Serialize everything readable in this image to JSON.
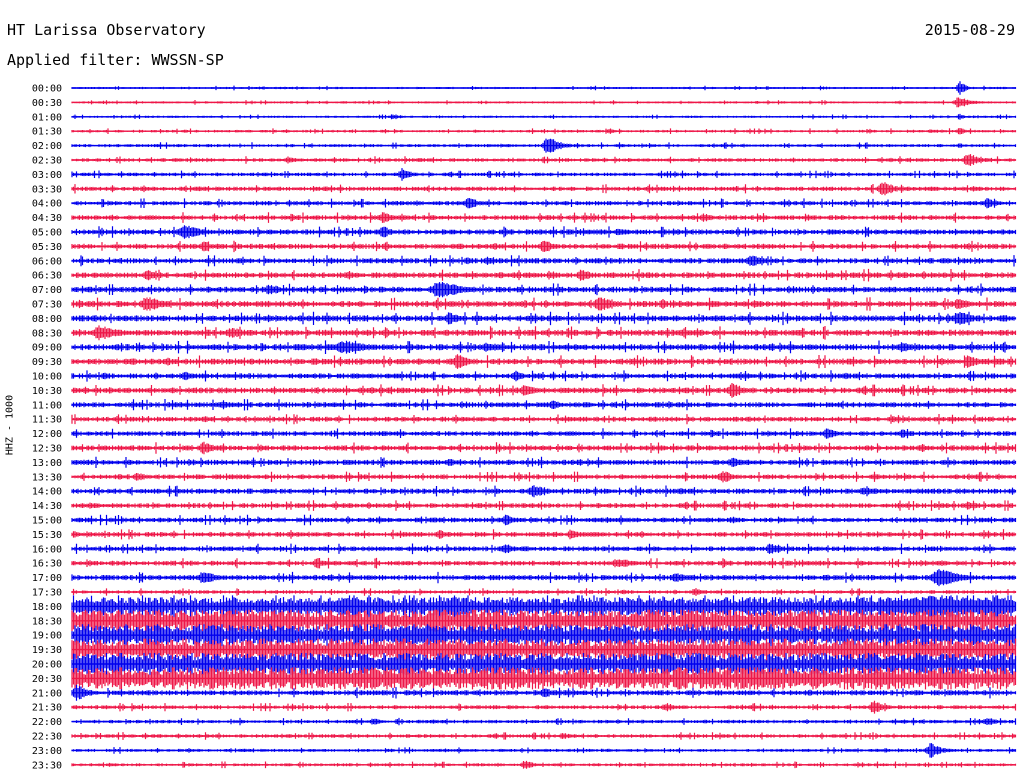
{
  "header": {
    "title": "HT Larissa Observatory",
    "date": "2015-08-29",
    "filter_label": "Applied filter: WWSSN-SP"
  },
  "chart_data": {
    "type": "line",
    "title": "HT Larissa Observatory",
    "subtitle": "Applied filter: WWSSN-SP",
    "date": "2015-08-29",
    "ylabel": "HHZ - 1000",
    "xlabel": "",
    "row_interval_minutes": 30,
    "grid": false,
    "colors": {
      "even_row": "#0000ee",
      "odd_row": "#ee1748",
      "background": "#ffffff",
      "text": "#000000"
    },
    "rows": [
      {
        "label": "00:00",
        "noise": 0.1,
        "events": [
          {
            "t": 0.94,
            "amp": 0.75,
            "dur": 0.004
          },
          {
            "t": 0.2,
            "amp": 0.15,
            "dur": 0.01
          }
        ]
      },
      {
        "label": "00:30",
        "noise": 0.1,
        "events": [
          {
            "t": 0.94,
            "amp": 0.55,
            "dur": 0.008
          }
        ]
      },
      {
        "label": "01:00",
        "noise": 0.1,
        "events": [
          {
            "t": 0.34,
            "amp": 0.25,
            "dur": 0.008
          },
          {
            "t": 0.94,
            "amp": 0.3,
            "dur": 0.004
          }
        ]
      },
      {
        "label": "01:30",
        "noise": 0.12,
        "events": [
          {
            "t": 0.57,
            "amp": 0.2,
            "dur": 0.008
          },
          {
            "t": 0.94,
            "amp": 0.4,
            "dur": 0.004
          }
        ]
      },
      {
        "label": "02:00",
        "noise": 0.14,
        "events": [
          {
            "t": 0.505,
            "amp": 0.9,
            "dur": 0.008
          },
          {
            "t": 0.94,
            "amp": 0.3,
            "dur": 0.004
          }
        ]
      },
      {
        "label": "02:30",
        "noise": 0.16,
        "events": [
          {
            "t": 0.23,
            "amp": 0.35,
            "dur": 0.008
          },
          {
            "t": 0.95,
            "amp": 0.6,
            "dur": 0.01
          }
        ]
      },
      {
        "label": "03:00",
        "noise": 0.16,
        "events": [
          {
            "t": 0.35,
            "amp": 0.6,
            "dur": 0.006
          },
          {
            "t": 0.63,
            "amp": 0.2,
            "dur": 0.008
          }
        ]
      },
      {
        "label": "03:30",
        "noise": 0.2,
        "events": [
          {
            "t": 0.86,
            "amp": 0.7,
            "dur": 0.008
          },
          {
            "t": 0.27,
            "amp": 0.25,
            "dur": 0.01
          }
        ]
      },
      {
        "label": "04:00",
        "noise": 0.2,
        "events": [
          {
            "t": 0.42,
            "amp": 0.7,
            "dur": 0.006
          },
          {
            "t": 0.97,
            "amp": 0.5,
            "dur": 0.008
          }
        ]
      },
      {
        "label": "04:30",
        "noise": 0.22,
        "events": [
          {
            "t": 0.33,
            "amp": 0.5,
            "dur": 0.01
          },
          {
            "t": 0.67,
            "amp": 0.4,
            "dur": 0.008
          }
        ]
      },
      {
        "label": "05:00",
        "noise": 0.24,
        "events": [
          {
            "t": 0.12,
            "amp": 0.7,
            "dur": 0.012
          },
          {
            "t": 0.33,
            "amp": 0.6,
            "dur": 0.006
          },
          {
            "t": 0.58,
            "amp": 0.4,
            "dur": 0.008
          }
        ]
      },
      {
        "label": "05:30",
        "noise": 0.24,
        "events": [
          {
            "t": 0.14,
            "amp": 0.5,
            "dur": 0.008
          },
          {
            "t": 0.5,
            "amp": 0.8,
            "dur": 0.006
          }
        ]
      },
      {
        "label": "06:00",
        "noise": 0.24,
        "events": [
          {
            "t": 0.72,
            "amp": 0.6,
            "dur": 0.008
          },
          {
            "t": 0.44,
            "amp": 0.4,
            "dur": 0.006
          }
        ]
      },
      {
        "label": "06:30",
        "noise": 0.26,
        "events": [
          {
            "t": 0.08,
            "amp": 0.5,
            "dur": 0.008
          },
          {
            "t": 0.54,
            "amp": 0.6,
            "dur": 0.008
          }
        ]
      },
      {
        "label": "07:00",
        "noise": 0.26,
        "events": [
          {
            "t": 0.39,
            "amp": 0.9,
            "dur": 0.014
          },
          {
            "t": 0.21,
            "amp": 0.5,
            "dur": 0.01
          }
        ]
      },
      {
        "label": "07:30",
        "noise": 0.28,
        "events": [
          {
            "t": 0.08,
            "amp": 0.8,
            "dur": 0.01
          },
          {
            "t": 0.56,
            "amp": 0.7,
            "dur": 0.01
          },
          {
            "t": 0.94,
            "amp": 0.6,
            "dur": 0.008
          }
        ]
      },
      {
        "label": "08:00",
        "noise": 0.28,
        "events": [
          {
            "t": 0.4,
            "amp": 0.6,
            "dur": 0.008
          },
          {
            "t": 0.94,
            "amp": 0.7,
            "dur": 0.01
          }
        ]
      },
      {
        "label": "08:30",
        "noise": 0.28,
        "events": [
          {
            "t": 0.03,
            "amp": 0.7,
            "dur": 0.014
          },
          {
            "t": 0.17,
            "amp": 0.5,
            "dur": 0.012
          }
        ]
      },
      {
        "label": "09:00",
        "noise": 0.28,
        "events": [
          {
            "t": 0.29,
            "amp": 0.6,
            "dur": 0.02
          },
          {
            "t": 0.44,
            "amp": 0.5,
            "dur": 0.012
          },
          {
            "t": 0.88,
            "amp": 0.5,
            "dur": 0.01
          }
        ]
      },
      {
        "label": "09:30",
        "noise": 0.28,
        "events": [
          {
            "t": 0.41,
            "amp": 0.8,
            "dur": 0.008
          },
          {
            "t": 0.95,
            "amp": 0.6,
            "dur": 0.008
          }
        ]
      },
      {
        "label": "10:00",
        "noise": 0.24,
        "events": [
          {
            "t": 0.12,
            "amp": 0.4,
            "dur": 0.008
          },
          {
            "t": 0.47,
            "amp": 0.5,
            "dur": 0.008
          }
        ]
      },
      {
        "label": "10:30",
        "noise": 0.26,
        "events": [
          {
            "t": 0.48,
            "amp": 0.5,
            "dur": 0.01
          },
          {
            "t": 0.7,
            "amp": 0.7,
            "dur": 0.008
          }
        ]
      },
      {
        "label": "11:00",
        "noise": 0.24,
        "events": [
          {
            "t": 0.16,
            "amp": 0.4,
            "dur": 0.01
          },
          {
            "t": 0.51,
            "amp": 0.4,
            "dur": 0.008
          }
        ]
      },
      {
        "label": "11:30",
        "noise": 0.22,
        "events": [
          {
            "t": 0.14,
            "amp": 0.3,
            "dur": 0.01
          },
          {
            "t": 0.87,
            "amp": 0.3,
            "dur": 0.008
          }
        ]
      },
      {
        "label": "12:00",
        "noise": 0.22,
        "events": [
          {
            "t": 0.8,
            "amp": 0.5,
            "dur": 0.008
          },
          {
            "t": 0.88,
            "amp": 0.4,
            "dur": 0.008
          }
        ]
      },
      {
        "label": "12:30",
        "noise": 0.24,
        "events": [
          {
            "t": 0.14,
            "amp": 0.6,
            "dur": 0.008
          },
          {
            "t": 0.9,
            "amp": 0.4,
            "dur": 0.008
          }
        ]
      },
      {
        "label": "13:00",
        "noise": 0.24,
        "events": [
          {
            "t": 0.4,
            "amp": 0.4,
            "dur": 0.008
          },
          {
            "t": 0.7,
            "amp": 0.5,
            "dur": 0.008
          }
        ]
      },
      {
        "label": "13:30",
        "noise": 0.22,
        "events": [
          {
            "t": 0.07,
            "amp": 0.4,
            "dur": 0.008
          },
          {
            "t": 0.69,
            "amp": 0.6,
            "dur": 0.008
          }
        ]
      },
      {
        "label": "14:00",
        "noise": 0.24,
        "events": [
          {
            "t": 0.49,
            "amp": 0.6,
            "dur": 0.01
          },
          {
            "t": 0.84,
            "amp": 0.4,
            "dur": 0.012
          }
        ]
      },
      {
        "label": "14:30",
        "noise": 0.22,
        "events": [
          {
            "t": 0.02,
            "amp": 0.3,
            "dur": 0.01
          },
          {
            "t": 0.95,
            "amp": 0.4,
            "dur": 0.008
          }
        ]
      },
      {
        "label": "15:00",
        "noise": 0.22,
        "events": [
          {
            "t": 0.46,
            "amp": 0.5,
            "dur": 0.008
          },
          {
            "t": 0.7,
            "amp": 0.3,
            "dur": 0.008
          }
        ]
      },
      {
        "label": "15:30",
        "noise": 0.22,
        "events": [
          {
            "t": 0.39,
            "amp": 0.4,
            "dur": 0.008
          },
          {
            "t": 0.53,
            "amp": 0.4,
            "dur": 0.01
          }
        ]
      },
      {
        "label": "16:00",
        "noise": 0.22,
        "events": [
          {
            "t": 0.46,
            "amp": 0.5,
            "dur": 0.008
          },
          {
            "t": 0.74,
            "amp": 0.5,
            "dur": 0.008
          }
        ]
      },
      {
        "label": "16:30",
        "noise": 0.22,
        "events": [
          {
            "t": 0.26,
            "amp": 0.5,
            "dur": 0.008
          },
          {
            "t": 0.58,
            "amp": 0.5,
            "dur": 0.012
          },
          {
            "t": 0.92,
            "amp": 0.3,
            "dur": 0.008
          }
        ]
      },
      {
        "label": "17:00",
        "noise": 0.24,
        "events": [
          {
            "t": 0.14,
            "amp": 0.6,
            "dur": 0.01
          },
          {
            "t": 0.64,
            "amp": 0.5,
            "dur": 0.008
          },
          {
            "t": 0.92,
            "amp": 0.8,
            "dur": 0.016
          }
        ]
      },
      {
        "label": "17:30",
        "noise": 0.16,
        "events": [
          {
            "t": 0.66,
            "amp": 0.4,
            "dur": 0.006
          }
        ]
      },
      {
        "label": "18:00",
        "noise": 0.85,
        "events": [
          {
            "t": 0.92,
            "amp": 1.0,
            "dur": 0.09
          }
        ]
      },
      {
        "label": "18:30",
        "noise": 0.95,
        "events": []
      },
      {
        "label": "19:00",
        "noise": 0.9,
        "events": [
          {
            "t": 0.58,
            "amp": 1.0,
            "dur": 0.01
          }
        ]
      },
      {
        "label": "19:30",
        "noise": 0.9,
        "events": []
      },
      {
        "label": "20:00",
        "noise": 0.95,
        "events": [
          {
            "t": 0.63,
            "amp": 1.0,
            "dur": 0.01
          }
        ]
      },
      {
        "label": "20:30",
        "noise": 0.95,
        "events": []
      },
      {
        "label": "21:00",
        "noise": 0.24,
        "events": [
          {
            "t": 0.005,
            "amp": 0.8,
            "dur": 0.008
          },
          {
            "t": 0.5,
            "amp": 0.5,
            "dur": 0.008
          }
        ]
      },
      {
        "label": "21:30",
        "noise": 0.18,
        "events": [
          {
            "t": 0.63,
            "amp": 0.4,
            "dur": 0.008
          },
          {
            "t": 0.85,
            "amp": 0.6,
            "dur": 0.008
          }
        ]
      },
      {
        "label": "22:00",
        "noise": 0.16,
        "events": [
          {
            "t": 0.32,
            "amp": 0.3,
            "dur": 0.008
          },
          {
            "t": 0.97,
            "amp": 0.4,
            "dur": 0.008
          }
        ]
      },
      {
        "label": "22:30",
        "noise": 0.16,
        "events": [
          {
            "t": 0.52,
            "amp": 0.3,
            "dur": 0.008
          }
        ]
      },
      {
        "label": "23:00",
        "noise": 0.14,
        "events": [
          {
            "t": 0.91,
            "amp": 0.7,
            "dur": 0.008
          }
        ]
      },
      {
        "label": "23:30",
        "noise": 0.14,
        "events": [
          {
            "t": 0.48,
            "amp": 0.4,
            "dur": 0.008
          }
        ]
      }
    ]
  }
}
